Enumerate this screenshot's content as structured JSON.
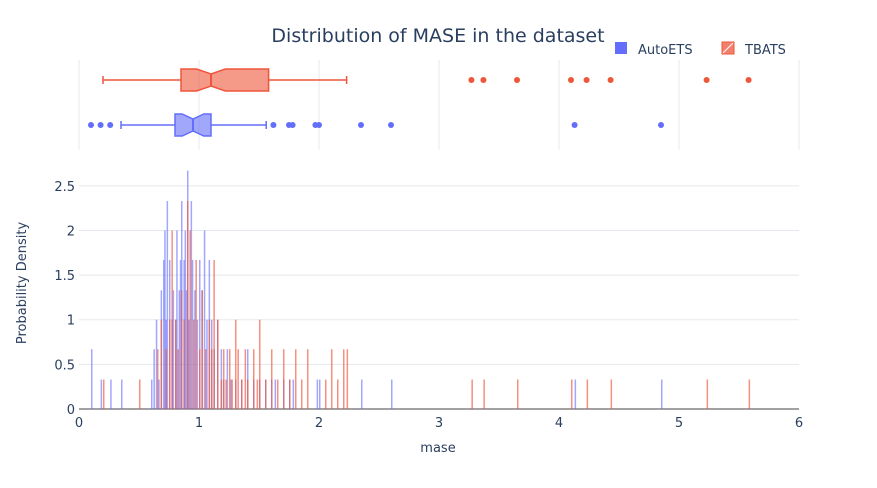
{
  "chart_data": {
    "type": "histogram+box",
    "title": "Distribution of MASE in the dataset",
    "xlabel": "mase",
    "ylabel": "Probability Density",
    "xlim": [
      0,
      6
    ],
    "ylim": [
      0,
      2.7
    ],
    "x_ticks": [
      "0",
      "1",
      "2",
      "3",
      "4",
      "5",
      "6"
    ],
    "y_ticks": [
      "0",
      "0.5",
      "1",
      "1.5",
      "2",
      "2.5"
    ],
    "grid": true,
    "legend_position": "top-right",
    "bin_width": 0.01,
    "series": [
      {
        "name": "AutoETS",
        "color": "#636efa",
        "hist": [
          [
            0.1,
            0.67
          ],
          [
            0.18,
            0.33
          ],
          [
            0.26,
            0.33
          ],
          [
            0.35,
            0.33
          ],
          [
            0.6,
            0.33
          ],
          [
            0.62,
            0.67
          ],
          [
            0.64,
            1.0
          ],
          [
            0.66,
            0.33
          ],
          [
            0.68,
            1.33
          ],
          [
            0.7,
            1.67
          ],
          [
            0.71,
            2.0
          ],
          [
            0.72,
            1.0
          ],
          [
            0.73,
            2.33
          ],
          [
            0.75,
            1.67
          ],
          [
            0.77,
            1.0
          ],
          [
            0.78,
            1.33
          ],
          [
            0.8,
            1.0
          ],
          [
            0.81,
            2.0
          ],
          [
            0.83,
            1.33
          ],
          [
            0.84,
            1.67
          ],
          [
            0.85,
            2.33
          ],
          [
            0.87,
            1.67
          ],
          [
            0.88,
            2.0
          ],
          [
            0.89,
            1.33
          ],
          [
            0.9,
            2.67
          ],
          [
            0.91,
            1.0
          ],
          [
            0.93,
            2.33
          ],
          [
            0.94,
            1.67
          ],
          [
            0.96,
            1.33
          ],
          [
            0.98,
            1.0
          ],
          [
            1.0,
            1.67
          ],
          [
            1.02,
            1.33
          ],
          [
            1.04,
            2.0
          ],
          [
            1.06,
            1.0
          ],
          [
            1.08,
            1.67
          ],
          [
            1.1,
            1.0
          ],
          [
            1.12,
            0.67
          ],
          [
            1.15,
            1.0
          ],
          [
            1.18,
            0.67
          ],
          [
            1.2,
            0.33
          ],
          [
            1.23,
            0.67
          ],
          [
            1.26,
            0.33
          ],
          [
            1.3,
            0.33
          ],
          [
            1.35,
            0.33
          ],
          [
            1.4,
            0.67
          ],
          [
            1.45,
            0.33
          ],
          [
            1.5,
            0.33
          ],
          [
            1.55,
            0.33
          ],
          [
            1.6,
            0.33
          ],
          [
            1.63,
            0.33
          ],
          [
            1.7,
            0.33
          ],
          [
            1.75,
            0.33
          ],
          [
            1.78,
            0.33
          ],
          [
            1.98,
            0.33
          ],
          [
            2.0,
            0.33
          ],
          [
            2.35,
            0.33
          ],
          [
            2.6,
            0.33
          ],
          [
            4.13,
            0.33
          ],
          [
            4.85,
            0.33
          ]
        ],
        "box": {
          "min": 0.35,
          "q1": 0.8,
          "median": 0.95,
          "q3": 1.1,
          "max": 1.56,
          "notch": [
            0.86,
            1.04
          ],
          "outliers": [
            0.1,
            0.18,
            0.26,
            1.62,
            1.75,
            1.78,
            1.97,
            2.0,
            2.35,
            2.6,
            4.13,
            4.85
          ]
        }
      },
      {
        "name": "TBATS",
        "color": "#ef553b",
        "hist": [
          [
            0.2,
            0.33
          ],
          [
            0.5,
            0.33
          ],
          [
            0.65,
            0.67
          ],
          [
            0.68,
            1.0
          ],
          [
            0.72,
            0.67
          ],
          [
            0.75,
            1.0
          ],
          [
            0.77,
            2.0
          ],
          [
            0.8,
            1.0
          ],
          [
            0.82,
            0.67
          ],
          [
            0.85,
            1.33
          ],
          [
            0.87,
            1.0
          ],
          [
            0.9,
            2.33
          ],
          [
            0.92,
            2.0
          ],
          [
            0.95,
            1.0
          ],
          [
            0.97,
            1.67
          ],
          [
            1.0,
            0.67
          ],
          [
            1.02,
            1.33
          ],
          [
            1.05,
            0.67
          ],
          [
            1.08,
            1.0
          ],
          [
            1.1,
            0.67
          ],
          [
            1.12,
            1.67
          ],
          [
            1.15,
            1.0
          ],
          [
            1.18,
            0.33
          ],
          [
            1.2,
            0.67
          ],
          [
            1.22,
            0.33
          ],
          [
            1.25,
            0.67
          ],
          [
            1.27,
            0.33
          ],
          [
            1.3,
            1.0
          ],
          [
            1.32,
            0.67
          ],
          [
            1.35,
            0.33
          ],
          [
            1.38,
            0.67
          ],
          [
            1.4,
            0.33
          ],
          [
            1.45,
            0.67
          ],
          [
            1.48,
            0.33
          ],
          [
            1.5,
            1.0
          ],
          [
            1.55,
            0.33
          ],
          [
            1.6,
            0.67
          ],
          [
            1.65,
            0.33
          ],
          [
            1.7,
            0.67
          ],
          [
            1.75,
            0.33
          ],
          [
            1.8,
            0.67
          ],
          [
            1.85,
            0.33
          ],
          [
            1.9,
            0.67
          ],
          [
            2.05,
            0.33
          ],
          [
            2.1,
            0.67
          ],
          [
            2.15,
            0.33
          ],
          [
            2.2,
            0.67
          ],
          [
            2.23,
            0.67
          ],
          [
            3.27,
            0.33
          ],
          [
            3.37,
            0.33
          ],
          [
            3.65,
            0.33
          ],
          [
            4.1,
            0.33
          ],
          [
            4.23,
            0.33
          ],
          [
            4.43,
            0.33
          ],
          [
            5.23,
            0.33
          ],
          [
            5.58,
            0.33
          ]
        ],
        "box": {
          "min": 0.2,
          "q1": 0.85,
          "median": 1.1,
          "q3": 1.58,
          "max": 2.23,
          "notch": [
            0.98,
            1.22
          ],
          "outliers": [
            3.27,
            3.37,
            3.65,
            4.1,
            4.23,
            4.43,
            5.23,
            5.58
          ]
        }
      }
    ]
  }
}
